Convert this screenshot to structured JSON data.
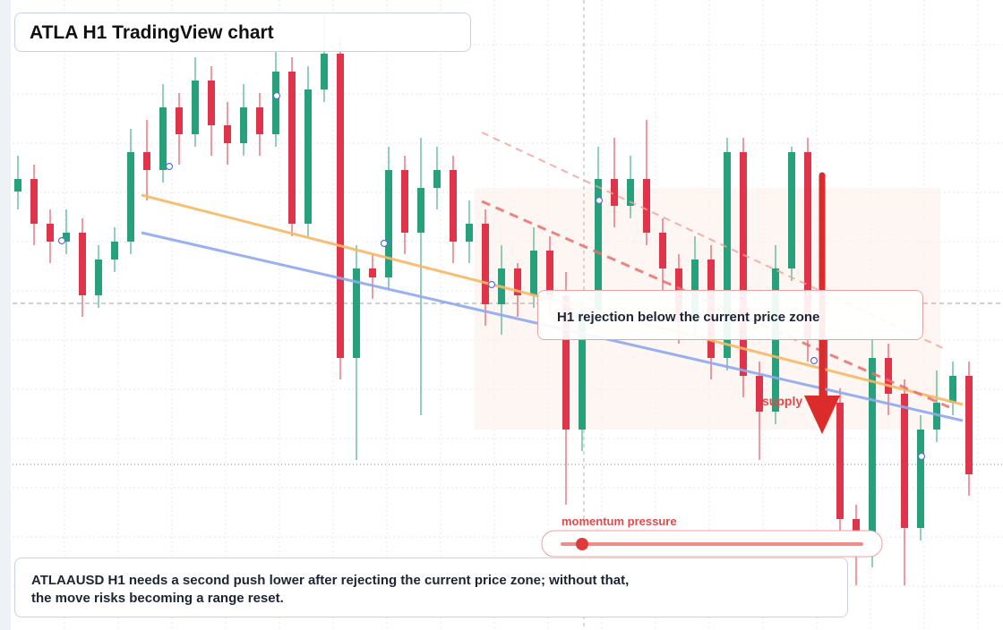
{
  "chart_data": {
    "type": "candlestick",
    "title": "ATLA H1 TradingView chart",
    "annotations": {
      "callout": "H1 rejection below the current price zone",
      "zone": "supply",
      "meter": "momentum pressure",
      "note": "ATLAAUSD H1 needs a second push lower after rejecting the current price zone; without that, the move risks becoming a range reset."
    },
    "ylim": [
      0,
      704
    ],
    "up_color": "#26a17b",
    "down_color": "#e0344a",
    "candles": [
      [
        490,
        530,
        470,
        504
      ],
      [
        504,
        520,
        430,
        454
      ],
      [
        454,
        470,
        410,
        434
      ],
      [
        434,
        470,
        420,
        444
      ],
      [
        444,
        460,
        350,
        374
      ],
      [
        374,
        430,
        360,
        414
      ],
      [
        414,
        450,
        400,
        434
      ],
      [
        434,
        560,
        420,
        534
      ],
      [
        534,
        570,
        480,
        514
      ],
      [
        514,
        610,
        500,
        584
      ],
      [
        584,
        600,
        520,
        554
      ],
      [
        554,
        640,
        540,
        614
      ],
      [
        614,
        630,
        530,
        564
      ],
      [
        564,
        590,
        520,
        544
      ],
      [
        544,
        610,
        530,
        584
      ],
      [
        584,
        600,
        530,
        554
      ],
      [
        554,
        650,
        540,
        624
      ],
      [
        624,
        640,
        440,
        454
      ],
      [
        454,
        630,
        440,
        604
      ],
      [
        604,
        690,
        590,
        644
      ],
      [
        644,
        660,
        280,
        304
      ],
      [
        304,
        430,
        190,
        404
      ],
      [
        404,
        420,
        370,
        394
      ],
      [
        394,
        540,
        380,
        514
      ],
      [
        514,
        530,
        420,
        444
      ],
      [
        444,
        550,
        240,
        494
      ],
      [
        494,
        540,
        470,
        514
      ],
      [
        514,
        530,
        410,
        434
      ],
      [
        434,
        480,
        410,
        454
      ],
      [
        454,
        470,
        340,
        364
      ],
      [
        364,
        430,
        330,
        404
      ],
      [
        404,
        410,
        350,
        374
      ],
      [
        374,
        450,
        360,
        424
      ],
      [
        424,
        440,
        350,
        374
      ],
      [
        374,
        400,
        140,
        224
      ],
      [
        224,
        370,
        200,
        354
      ],
      [
        354,
        540,
        340,
        504
      ],
      [
        504,
        550,
        450,
        474
      ],
      [
        474,
        530,
        460,
        504
      ],
      [
        504,
        570,
        430,
        444
      ],
      [
        444,
        460,
        380,
        404
      ],
      [
        404,
        420,
        320,
        344
      ],
      [
        344,
        440,
        330,
        414
      ],
      [
        414,
        430,
        280,
        304
      ],
      [
        304,
        550,
        290,
        534
      ],
      [
        534,
        550,
        260,
        284
      ],
      [
        284,
        300,
        190,
        244
      ],
      [
        244,
        430,
        230,
        404
      ],
      [
        404,
        540,
        390,
        534
      ],
      [
        534,
        550,
        300,
        324
      ],
      [
        324,
        340,
        230,
        254
      ],
      [
        254,
        270,
        100,
        124
      ],
      [
        124,
        140,
        50,
        84
      ],
      [
        84,
        330,
        70,
        304
      ],
      [
        304,
        320,
        240,
        264
      ],
      [
        264,
        280,
        50,
        114
      ],
      [
        114,
        240,
        100,
        224
      ],
      [
        224,
        290,
        210,
        254
      ],
      [
        254,
        300,
        240,
        284
      ],
      [
        284,
        300,
        150,
        174
      ]
    ]
  }
}
